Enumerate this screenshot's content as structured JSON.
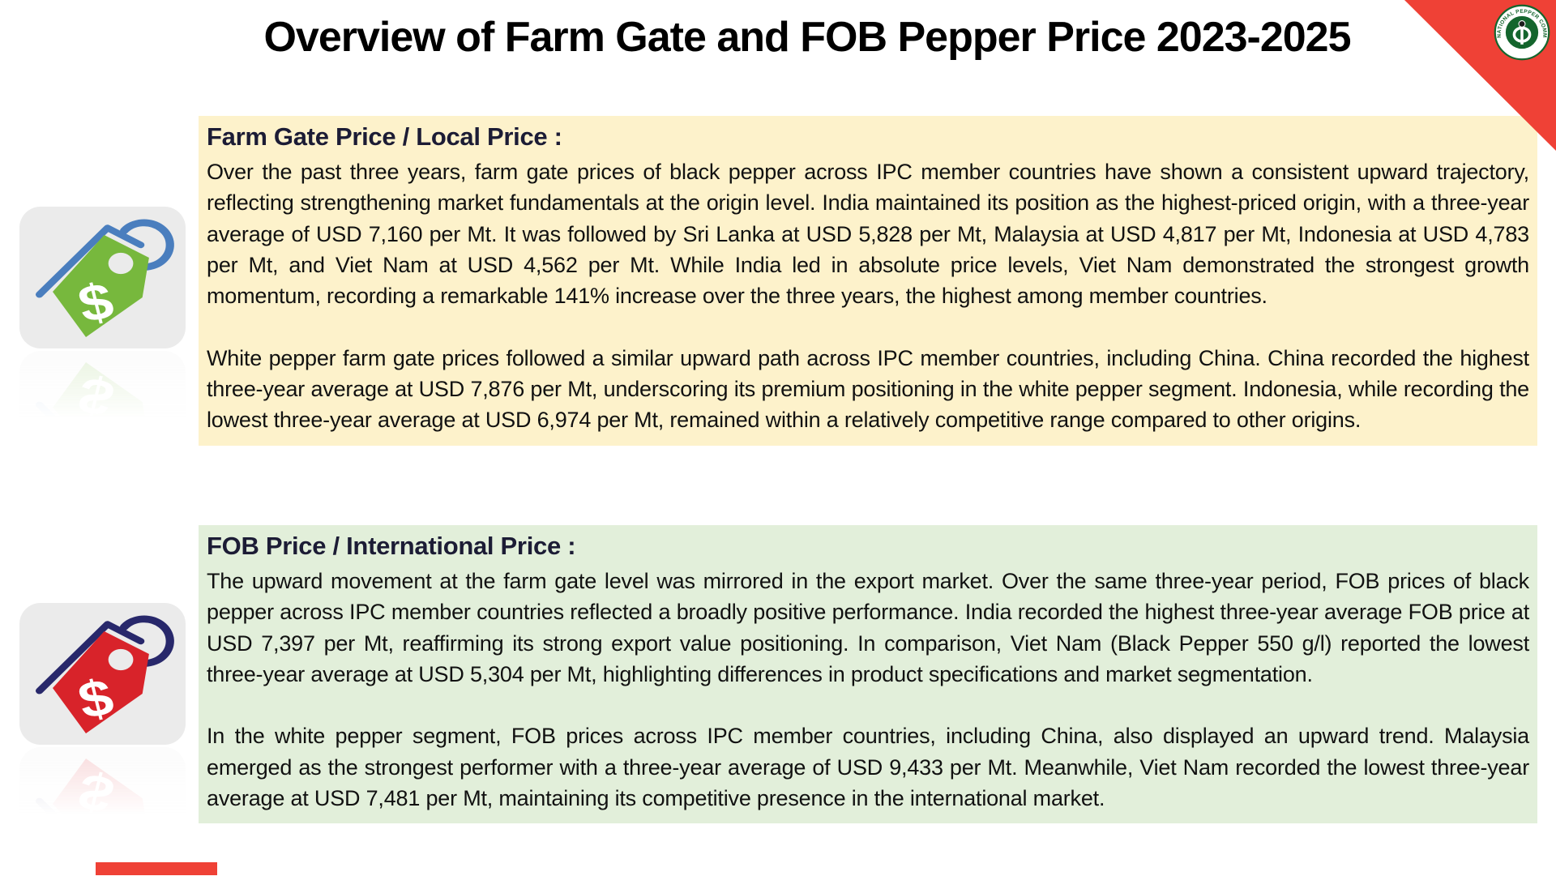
{
  "slide": {
    "title": "Overview of Farm Gate and FOB Pepper Price 2023-2025"
  },
  "sections": [
    {
      "heading": "Farm Gate Price / Local Price :",
      "paragraphs": [
        "Over the past three years, farm gate prices of black pepper across IPC member countries have shown a consistent upward trajectory, reflecting strengthening market fundamentals at the origin level. India maintained its position as the highest-priced origin, with a three-year average of USD 7,160 per Mt. It was followed by Sri Lanka at USD 5,828 per Mt, Malaysia at USD 4,817 per Mt, Indonesia at USD 4,783 per Mt, and Viet Nam at USD 4,562 per Mt. While India led in absolute price levels, Viet Nam demonstrated the strongest growth momentum, recording a remarkable 141% increase over the three years, the highest among member countries.",
        "White pepper farm gate prices followed a similar upward path across IPC member countries, including China. China recorded the highest three-year average at USD 7,876 per Mt, underscoring its premium positioning in the white pepper segment. Indonesia, while recording the lowest three-year average at USD 6,974 per Mt, remained within a relatively competitive range compared to other origins."
      ]
    },
    {
      "heading": "FOB Price / International Price :",
      "paragraphs": [
        "The upward movement at the farm gate level was mirrored in the export market. Over the same three-year period, FOB prices of black pepper across IPC member countries reflected a broadly positive performance. India recorded the highest three-year average FOB price at USD 7,397 per Mt, reaffirming its strong export value positioning. In comparison, Viet Nam (Black Pepper 550 g/l) reported the lowest three-year average at USD 5,304 per Mt, highlighting differences in product specifications and market segmentation.",
        "In the white pepper segment, FOB prices across IPC member countries, including China, also displayed an upward trend. Malaysia emerged as the strongest performer with a three-year average of USD 9,433 per Mt. Meanwhile, Viet Nam recorded the lowest three-year average at USD 7,481 per Mt, maintaining its competitive presence in the international market."
      ]
    }
  ],
  "icons": [
    {
      "name": "green-price-tag-icon",
      "glyph": "$"
    },
    {
      "name": "red-price-tag-icon",
      "glyph": "$"
    }
  ],
  "logo": {
    "ring_text": "INTERNATIONAL PEPPER COMMUNITY",
    "symbol": "pepper-phi"
  },
  "colors": {
    "farm_section_bg": "#FDF2CB",
    "fob_section_bg": "#E2EFDA",
    "accent_red": "#EF4136",
    "heading_navy": "#1C1C35",
    "tag_green": "#77B83D",
    "tag_red": "#D8232A",
    "rope_blue": "#4A7EBE",
    "rope_navy": "#28286B",
    "logo_green": "#14652D"
  }
}
